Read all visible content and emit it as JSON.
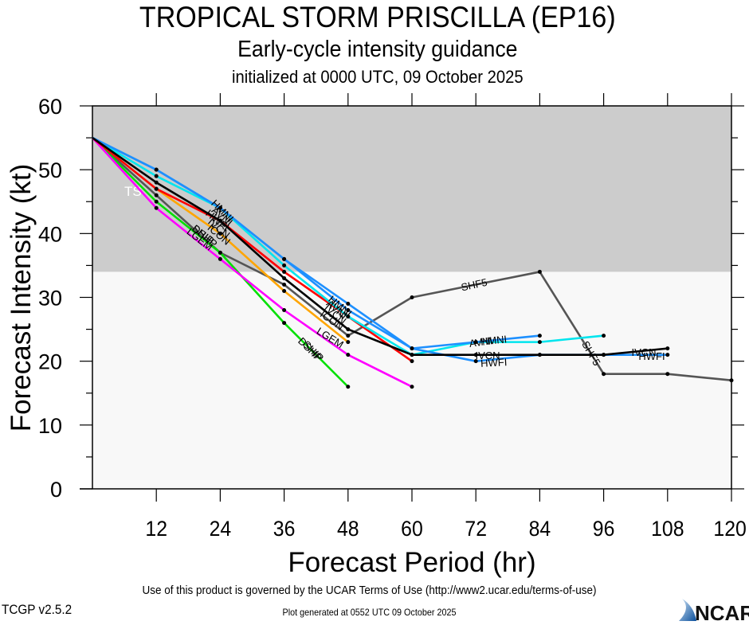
{
  "header": {
    "title": "TROPICAL STORM PRISCILLA (EP16)",
    "subtitle": "Early-cycle intensity guidance",
    "initialized": "initialized at 0000 UTC, 09 October 2025"
  },
  "footer": {
    "terms": "Use of this product is governed by the UCAR Terms of Use (http://www2.ucar.edu/terms-of-use)",
    "generated": "Plot generated at 0552 UTC   09 October 2025",
    "version": "TCGP v2.5.2",
    "logo_text": "NCAR"
  },
  "chart_data": {
    "type": "line",
    "title": "TROPICAL STORM PRISCILLA (EP16)",
    "subtitle": "Early-cycle intensity guidance",
    "xlabel": "Forecast Period (hr)",
    "ylabel": "Forecast Intensity (kt)",
    "xlim": [
      0,
      120
    ],
    "ylim": [
      0,
      60
    ],
    "xticks": [
      12,
      24,
      36,
      48,
      60,
      72,
      84,
      96,
      108,
      120
    ],
    "yticks": [
      0,
      10,
      20,
      30,
      40,
      50,
      60
    ],
    "bands": [
      {
        "label": "TS",
        "from": 34,
        "to": 60,
        "color": "#cccccc"
      },
      {
        "label": "",
        "from": 0,
        "to": 34,
        "color": "#f8f8f8"
      }
    ],
    "series": [
      {
        "name": "SHF5",
        "color": "#555555",
        "x": [
          0,
          12,
          24,
          36,
          48,
          60,
          84,
          96,
          108,
          120
        ],
        "y": [
          55,
          46,
          37,
          32,
          24,
          30,
          34,
          18,
          18,
          17
        ]
      },
      {
        "name": "SHIP",
        "color": "#00e000",
        "x": [
          0,
          12,
          24,
          36,
          48
        ],
        "y": [
          55,
          45,
          37,
          26,
          16
        ]
      },
      {
        "name": "DSHP",
        "color": "#ffa500",
        "x": [
          0,
          12,
          24,
          36,
          48
        ],
        "y": [
          55,
          47,
          40,
          31,
          23
        ]
      },
      {
        "name": "LGEM",
        "color": "#ff00ff",
        "x": [
          0,
          12,
          24,
          36,
          48,
          60
        ],
        "y": [
          55,
          44,
          36,
          28,
          21,
          16
        ]
      },
      {
        "name": "ICON",
        "color": "#ff0000",
        "x": [
          0,
          12,
          24,
          36,
          48,
          60
        ],
        "y": [
          55,
          47,
          42,
          34,
          27,
          20
        ]
      },
      {
        "name": "AVNI",
        "color": "#00e5ee",
        "x": [
          0,
          12,
          24,
          36,
          48,
          60,
          72,
          84,
          96
        ],
        "y": [
          55,
          49,
          44,
          35,
          27,
          21,
          23,
          23,
          24
        ]
      },
      {
        "name": "HMNI",
        "color": "#1e90ff",
        "x": [
          0,
          12,
          24,
          36,
          48,
          60,
          72,
          84
        ],
        "y": [
          55,
          50,
          44,
          36,
          29,
          22,
          23,
          24
        ]
      },
      {
        "name": "HWFI",
        "color": "#1e90ff",
        "x": [
          0,
          12,
          24,
          36,
          48,
          60,
          72,
          84,
          96,
          108
        ],
        "y": [
          55,
          50,
          44,
          36,
          28,
          22,
          20,
          21,
          21,
          21
        ]
      },
      {
        "name": "IVCN",
        "color": "#000000",
        "x": [
          0,
          12,
          24,
          36,
          48,
          60,
          72,
          84,
          96,
          108
        ],
        "y": [
          55,
          48,
          42,
          33,
          25,
          21,
          21,
          21,
          21,
          22
        ]
      }
    ],
    "legend": "none (labels on lines)",
    "grid": false
  }
}
